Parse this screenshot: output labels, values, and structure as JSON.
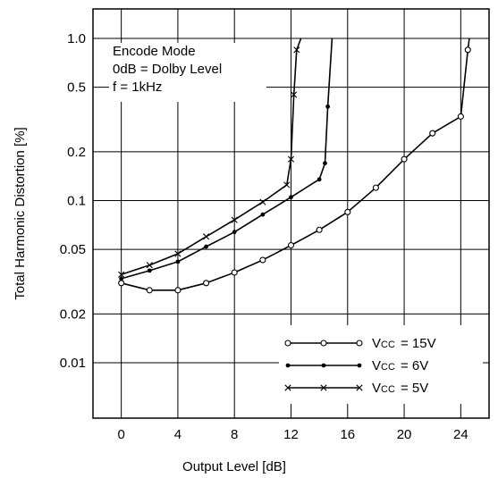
{
  "chart_data": {
    "type": "line",
    "title": "",
    "xlabel": "Output Level [dB]",
    "ylabel": "Total Harmonic Distortion [%]",
    "xlim": [
      -2,
      26
    ],
    "ylim": [
      0.005,
      1.0
    ],
    "yscale": "log",
    "grid": true,
    "legend_position": "bottom-right",
    "x_ticks": [
      0,
      4,
      8,
      12,
      16,
      20,
      24
    ],
    "x_tick_labels": [
      "0",
      "4",
      "8",
      "12",
      "16",
      "20",
      "24"
    ],
    "y_ticks": [
      0.01,
      0.02,
      0.05,
      0.1,
      0.2,
      0.5,
      1.0
    ],
    "y_tick_labels": [
      "0.01",
      "0.02",
      "0.05",
      "0.1",
      "0.2",
      "0.5",
      "1.0"
    ],
    "annotations": [
      "Encode Mode",
      "0dB = Dolby Level",
      "f = 1kHz"
    ],
    "series": [
      {
        "name": "Vcc = 15V",
        "vcc_label": "Vcc",
        "value_label": "= 15V",
        "marker": "circle",
        "x": [
          0,
          2,
          4,
          6,
          8,
          10,
          12,
          14,
          16,
          18,
          20,
          22,
          24,
          24.5,
          24.6
        ],
        "y": [
          0.031,
          0.028,
          0.028,
          0.031,
          0.036,
          0.043,
          0.053,
          0.066,
          0.085,
          0.12,
          0.18,
          0.26,
          0.33,
          0.85,
          1.0
        ]
      },
      {
        "name": "Vcc = 6V",
        "vcc_label": "Vcc",
        "value_label": "= 6V",
        "marker": "dot",
        "x": [
          0,
          2,
          4,
          6,
          8,
          10,
          12,
          14,
          14.4,
          14.6,
          14.9
        ],
        "y": [
          0.033,
          0.037,
          0.042,
          0.052,
          0.064,
          0.082,
          0.105,
          0.135,
          0.17,
          0.38,
          1.0
        ]
      },
      {
        "name": "Vcc = 5V",
        "vcc_label": "Vcc",
        "value_label": "= 5V",
        "marker": "x",
        "x": [
          0,
          2,
          4,
          6,
          8,
          10,
          11.7,
          12,
          12.2,
          12.4,
          12.7
        ],
        "y": [
          0.035,
          0.04,
          0.047,
          0.06,
          0.076,
          0.098,
          0.125,
          0.18,
          0.45,
          0.85,
          1.0
        ]
      }
    ]
  }
}
